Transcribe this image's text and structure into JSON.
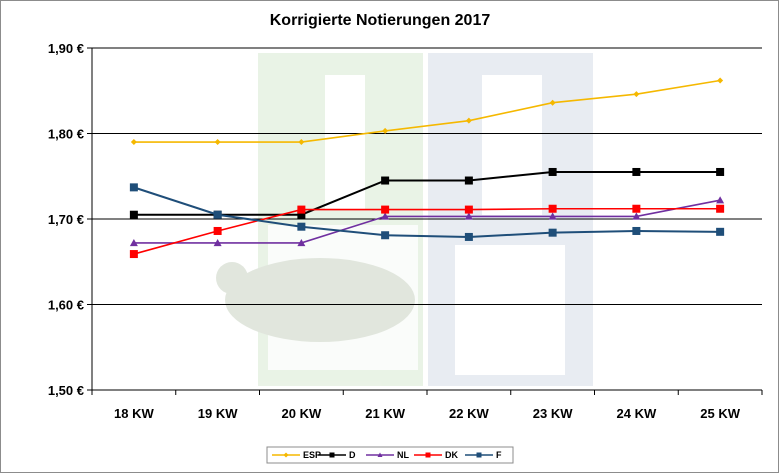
{
  "chart_data": {
    "type": "line",
    "title": "Korrigierte Notierungen 2017",
    "xlabel": "",
    "ylabel": "",
    "categories": [
      "18 KW",
      "19 KW",
      "20 KW",
      "21 KW",
      "22 KW",
      "23 KW",
      "24 KW",
      "25 KW"
    ],
    "y_ticks": [
      "1,50 €",
      "1,60 €",
      "1,70 €",
      "1,80 €",
      "1,90 €"
    ],
    "y_tick_values": [
      1.5,
      1.6,
      1.7,
      1.8,
      1.9
    ],
    "ylim": [
      1.5,
      1.9
    ],
    "grid": true,
    "legend_position": "bottom",
    "series": [
      {
        "name": "ESP",
        "color": "#f5b800",
        "marker": "diamond",
        "values": [
          1.79,
          1.79,
          1.79,
          1.803,
          1.815,
          1.836,
          1.846,
          1.862
        ]
      },
      {
        "name": "D",
        "color": "#000000",
        "marker": "square",
        "values": [
          1.705,
          1.705,
          1.705,
          1.745,
          1.745,
          1.755,
          1.755,
          1.755
        ]
      },
      {
        "name": "NL",
        "color": "#7030a0",
        "marker": "triangle",
        "values": [
          1.672,
          1.672,
          1.672,
          1.703,
          1.703,
          1.703,
          1.703,
          1.722
        ]
      },
      {
        "name": "DK",
        "color": "#ff0000",
        "marker": "square",
        "values": [
          1.659,
          1.686,
          1.711,
          1.711,
          1.711,
          1.712,
          1.712,
          1.712
        ]
      },
      {
        "name": "F",
        "color": "#1f4e79",
        "marker": "square",
        "values": [
          1.737,
          1.705,
          1.691,
          1.681,
          1.679,
          1.684,
          1.686,
          1.685
        ]
      }
    ]
  }
}
